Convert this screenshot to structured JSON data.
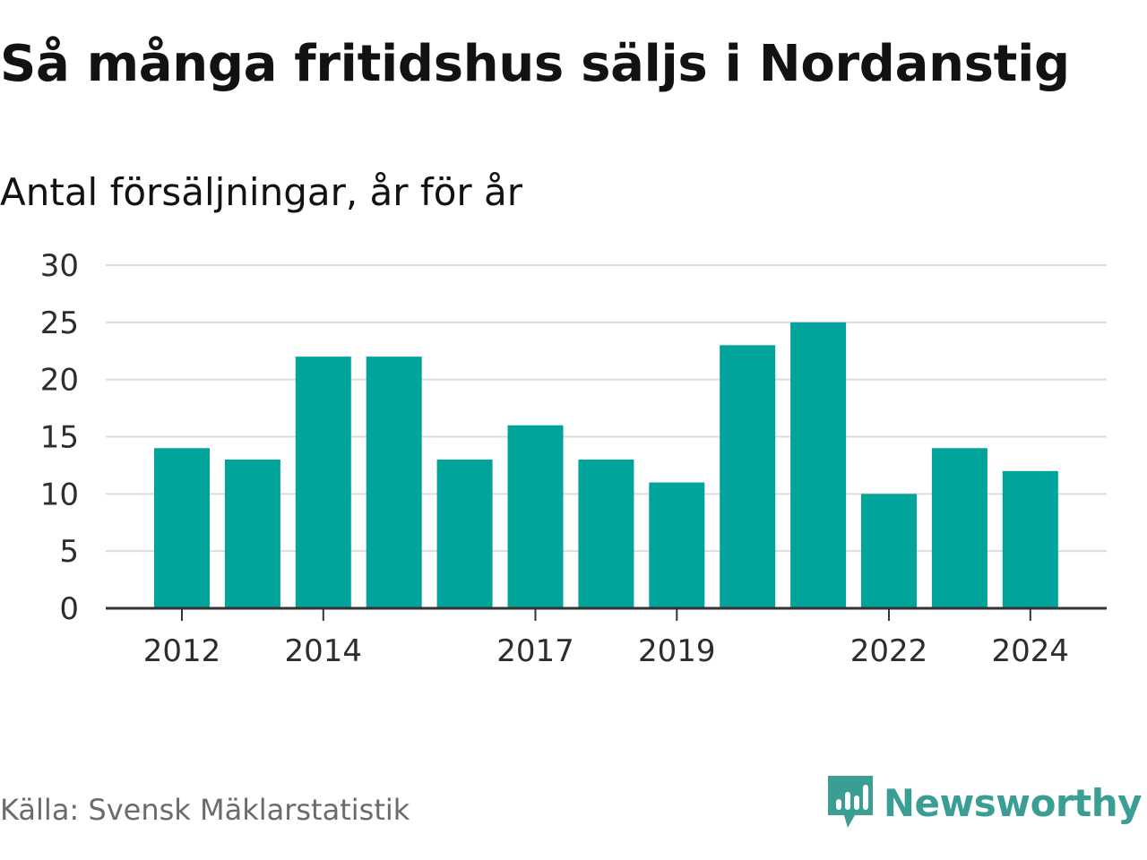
{
  "header": {
    "title": "Så många fritidshus säljs i Nordanstig",
    "subtitle": "Antal försäljningar, år för år"
  },
  "footer": {
    "source": "Källa: Svensk Mäklarstatistik",
    "logo_text": "Newsworthy"
  },
  "colors": {
    "bar": "#00a49a",
    "grid": "#dcdcdc",
    "axis": "#333333",
    "logo": "#3a9e95"
  },
  "icons": {
    "logo": "speech-bubble-bar-chart-icon"
  },
  "chart_data": {
    "type": "bar",
    "categories": [
      "2012",
      "2013",
      "2014",
      "2015",
      "2016",
      "2017",
      "2018",
      "2019",
      "2020",
      "2021",
      "2022",
      "2023",
      "2024"
    ],
    "values": [
      14,
      13,
      22,
      22,
      13,
      16,
      13,
      11,
      23,
      25,
      10,
      14,
      12
    ],
    "labeled_categories": [
      "2012",
      "2014",
      "2017",
      "2019",
      "2022",
      "2024"
    ],
    "title": "Så många fritidshus säljs i Nordanstig",
    "subtitle": "Antal försäljningar, år för år",
    "xlabel": "",
    "ylabel": "",
    "ylim": [
      0,
      30
    ],
    "yticks": [
      0,
      5,
      10,
      15,
      20,
      25,
      30
    ],
    "grid": true,
    "legend": "none"
  }
}
